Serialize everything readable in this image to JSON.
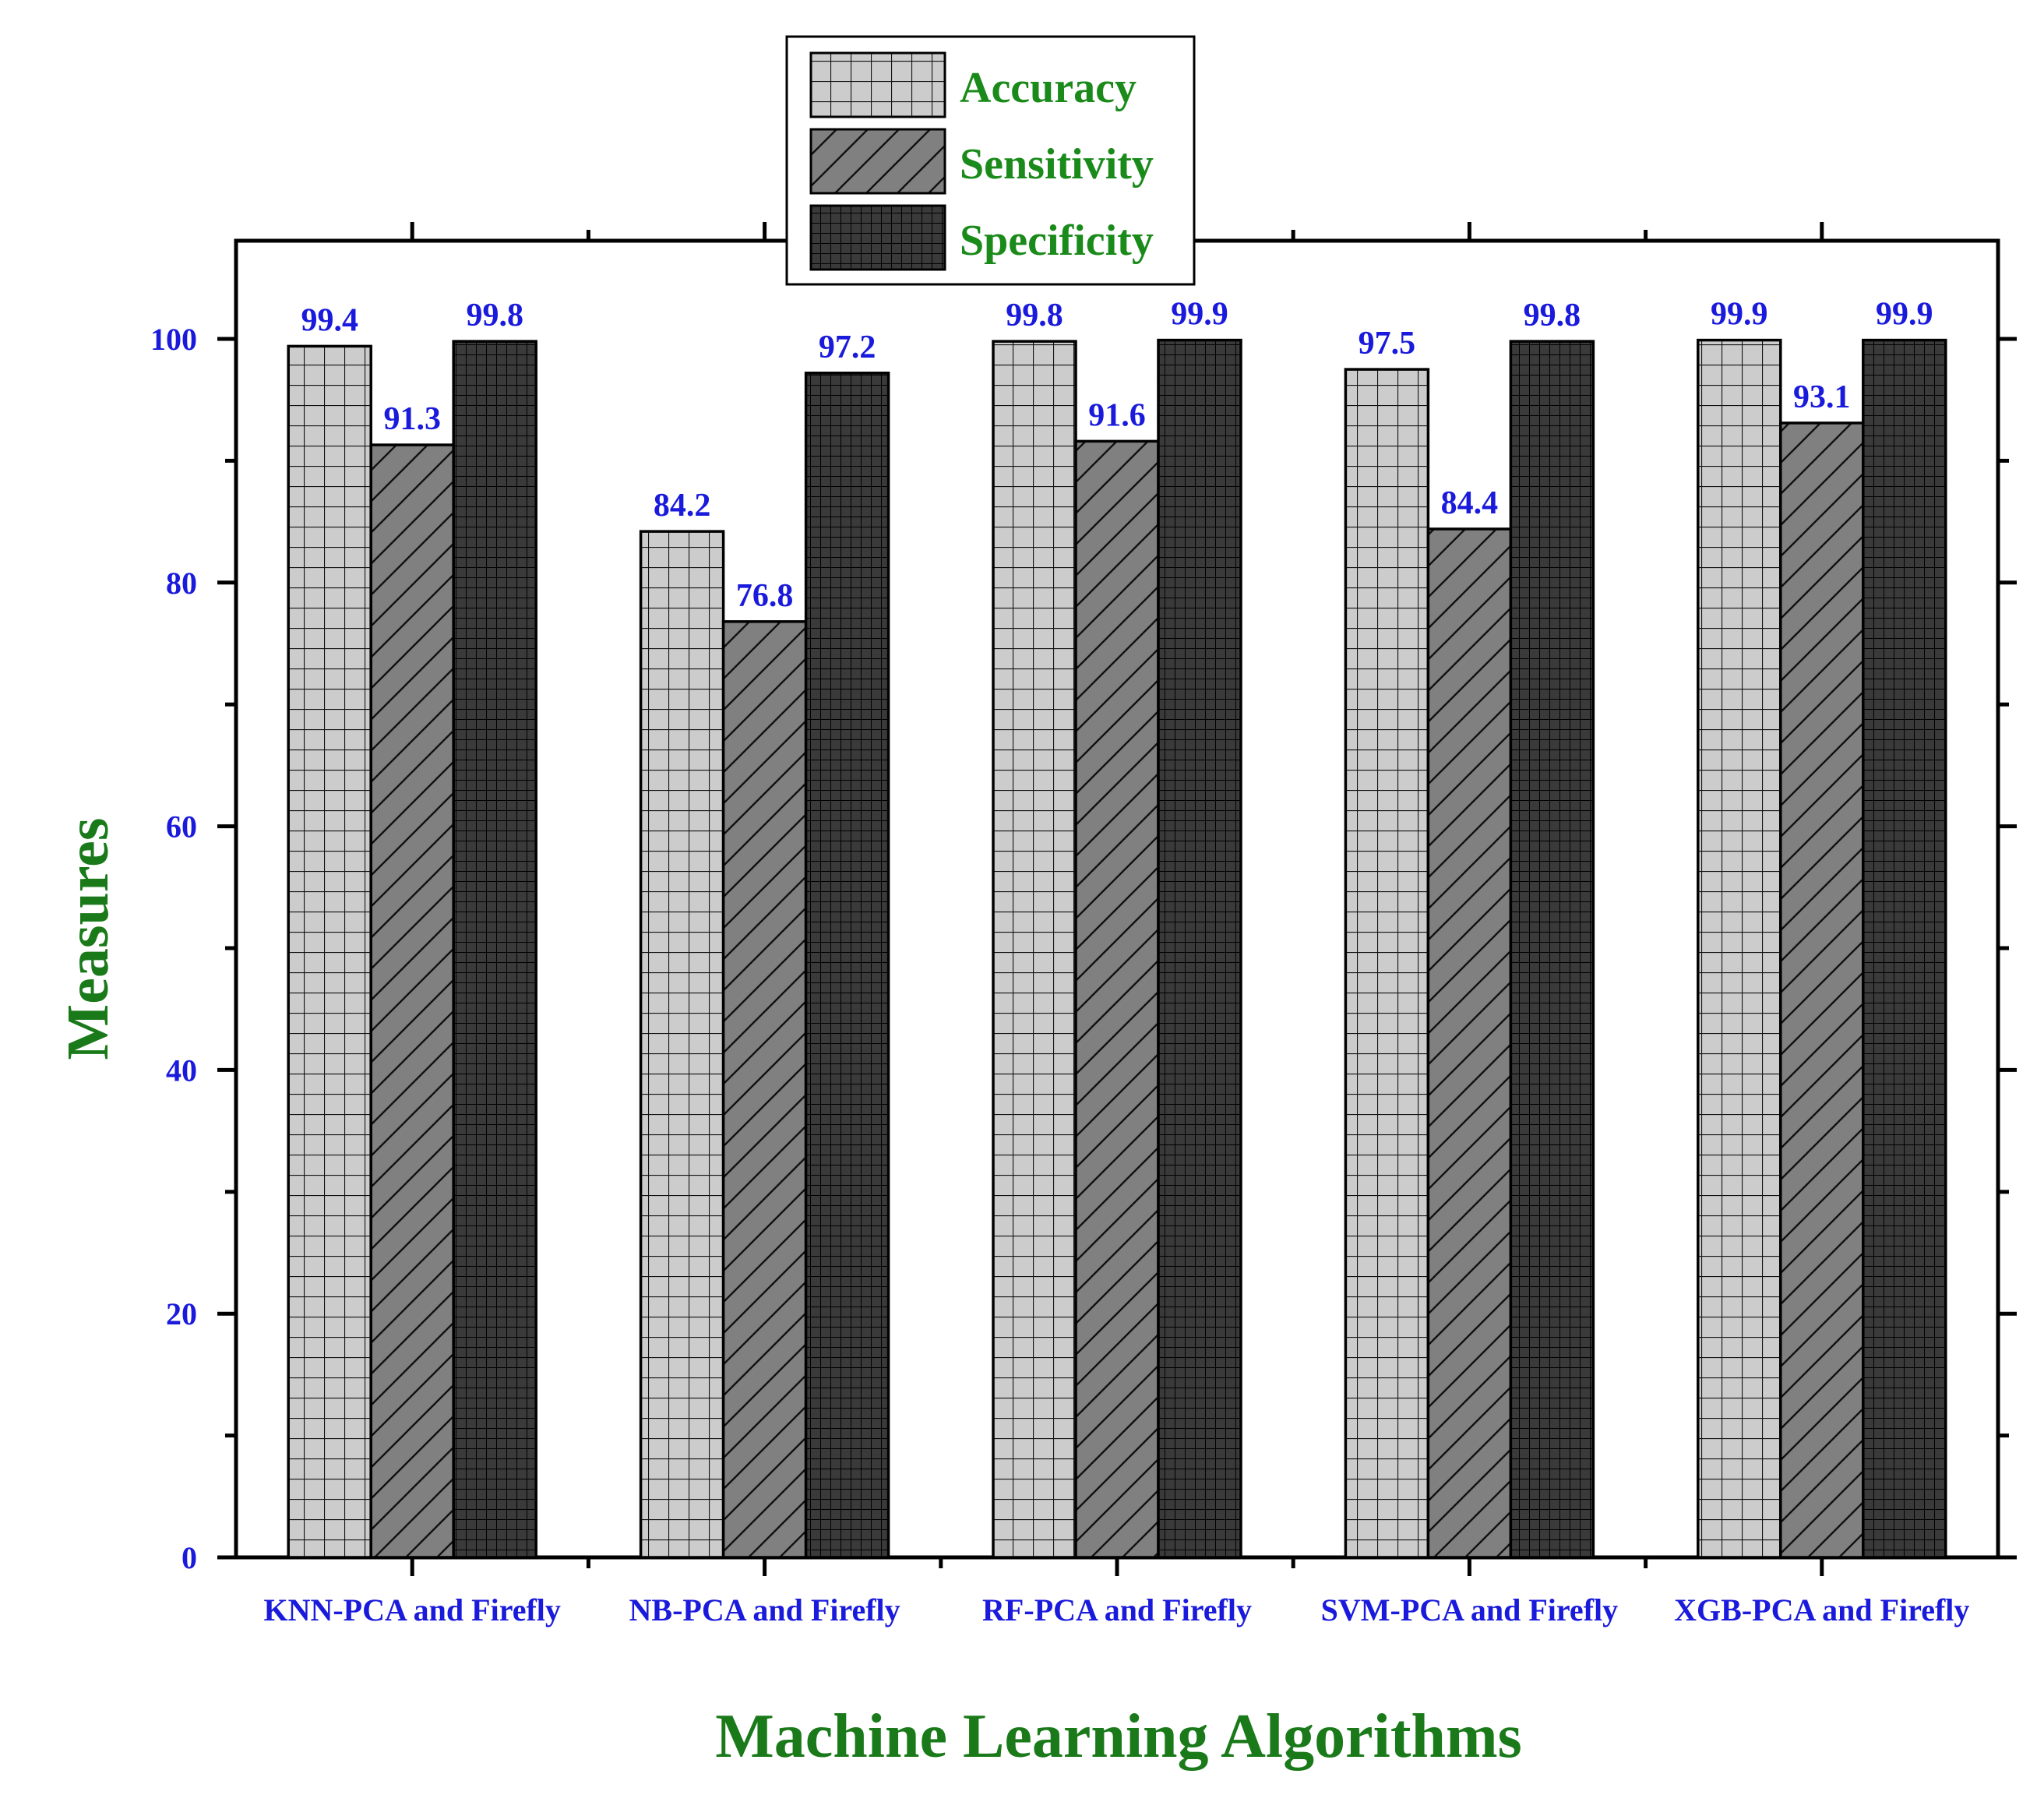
{
  "chart_data": {
    "type": "bar",
    "categories": [
      "KNN-PCA and Firefly",
      "NB-PCA and Firefly",
      "RF-PCA and Firefly",
      "SVM-PCA and Firefly",
      "XGB-PCA and Firefly"
    ],
    "series": [
      {
        "name": "Accuracy",
        "values": [
          99.4,
          84.2,
          99.8,
          97.5,
          99.9
        ],
        "pattern": "grid",
        "color": "#cccccc"
      },
      {
        "name": "Sensitivity",
        "values": [
          91.3,
          76.8,
          91.6,
          84.4,
          93.1
        ],
        "pattern": "diagonal",
        "color": "#808080"
      },
      {
        "name": "Specificity",
        "values": [
          99.8,
          97.2,
          99.9,
          99.8,
          99.9
        ],
        "pattern": "fine-grid",
        "color": "#3a3a3a"
      }
    ],
    "data_labels": [
      [
        "99.4",
        "84.2",
        "99.8",
        "97.5",
        "99.9"
      ],
      [
        "91.3",
        "76.8",
        "91.6",
        "84.4",
        "93.1"
      ],
      [
        "99.8",
        "97.2",
        "99.9",
        "99.8",
        "99.9"
      ]
    ],
    "title": "",
    "xlabel": "Machine Learning Algorithms",
    "ylabel": "Measures",
    "ylim": [
      0,
      107
    ],
    "yticks": [
      0,
      20,
      40,
      60,
      80,
      100
    ],
    "ytick_labels": [
      "0",
      "20",
      "40",
      "60",
      "80",
      "100"
    ],
    "minor_tick_step": 10,
    "grid": false,
    "legend_position": "top-center",
    "colors": {
      "label_blue": "#1a1adc",
      "axis_title_green": "#1a7a1a",
      "legend_green": "#1a8a1a",
      "axis": "#000000"
    }
  }
}
